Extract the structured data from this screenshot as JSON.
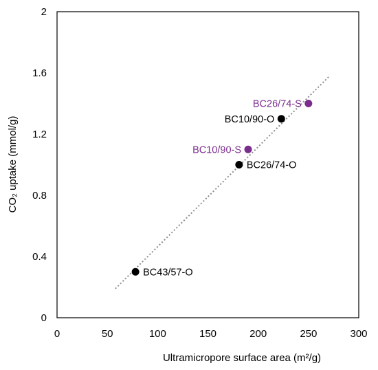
{
  "chart_data": {
    "type": "scatter",
    "xlabel": "Ultramicropore surface area (m²/g)",
    "ylabel": "CO₂ uptake (mmol/g)",
    "xlim": [
      0,
      300
    ],
    "ylim": [
      0,
      2
    ],
    "x_ticks": [
      "0",
      "50",
      "100",
      "150",
      "200",
      "250",
      "300"
    ],
    "y_ticks": [
      "0",
      "0.4",
      "0.8",
      "1.2",
      "1.6",
      "2"
    ],
    "grid": false,
    "colors": {
      "O": "#000000",
      "S": "#7B2D8E",
      "trendline": "#8c8c8c"
    },
    "series": [
      {
        "name": "O",
        "points": [
          {
            "label": "BC43/57-O",
            "x": 78,
            "y": 0.3
          },
          {
            "label": "BC26/74-O",
            "x": 181,
            "y": 1.0
          },
          {
            "label": "BC10/90-O",
            "x": 223,
            "y": 1.3
          }
        ]
      },
      {
        "name": "S",
        "points": [
          {
            "label": "BC10/90-S",
            "x": 190,
            "y": 1.1
          },
          {
            "label": "BC26/74-S",
            "x": 250,
            "y": 1.4
          }
        ]
      }
    ],
    "trendline": {
      "style": "dotted",
      "x": [
        58,
        271
      ],
      "y": [
        0.19,
        1.58
      ]
    }
  }
}
